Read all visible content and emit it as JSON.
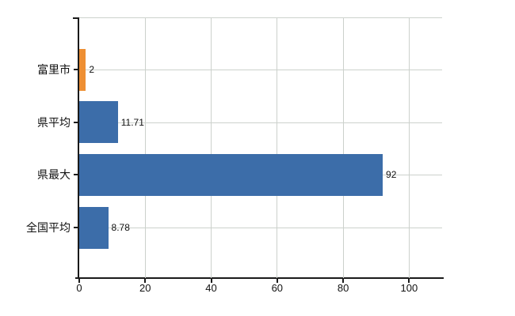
{
  "chart_data": {
    "type": "bar",
    "orientation": "horizontal",
    "title": "",
    "xlabel": "",
    "ylabel": "",
    "categories": [
      "富里市",
      "県平均",
      "県最大",
      "全国平均"
    ],
    "values": [
      2,
      11.71,
      92,
      8.78
    ],
    "value_labels": [
      "2",
      "11.71",
      "92",
      "8.78"
    ],
    "bar_colors": [
      "#EE8F33",
      "#3C6DA9",
      "#3C6DA9",
      "#3C6DA9"
    ],
    "xlim": [
      0,
      110
    ],
    "x_ticks": [
      0,
      20,
      40,
      60,
      80,
      100
    ],
    "x_tick_labels": [
      "0",
      "20",
      "40",
      "60",
      "80",
      "100"
    ],
    "grid": true,
    "legend": false,
    "colors": {
      "highlight_bar": "#EE8F33",
      "default_bar": "#3C6DA9",
      "gridline": "#ccd1cc",
      "axis": "#1a1a1a",
      "text": "#111111",
      "background": "#ffffff"
    }
  }
}
